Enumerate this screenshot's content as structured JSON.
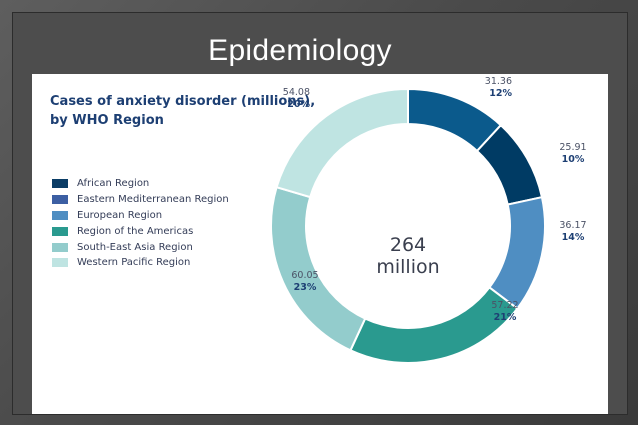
{
  "slide": {
    "title": "Epidemiology"
  },
  "chart_data": {
    "type": "pie",
    "title_lines": [
      "Cases of anxiety disorder (millions),",
      "by WHO Region"
    ],
    "center_label": [
      "264",
      "million"
    ],
    "legend_placement": "left",
    "slices": [
      {
        "name": "African Region",
        "value": 31.36,
        "percent": "12%",
        "color": "#0b5a8c"
      },
      {
        "name": "Eastern Mediterranean Region",
        "value": 25.91,
        "percent": "10%",
        "color": "#003b64"
      },
      {
        "name": "European Region",
        "value": 36.17,
        "percent": "14%",
        "color": "#4f8ec2"
      },
      {
        "name": "Region of the Americas",
        "value": 57.22,
        "percent": "21%",
        "color": "#2a9a8f"
      },
      {
        "name": "South-East Asia Region",
        "value": 60.05,
        "percent": "23%",
        "color": "#93cccc"
      },
      {
        "name": "Western Pacific Region",
        "value": 54.08,
        "percent": "20%",
        "color": "#bfe4e2"
      }
    ],
    "legend": [
      {
        "name": "African Region",
        "color": "#0b3d66"
      },
      {
        "name": "Eastern Mediterranean Region",
        "color": "#3c5fa3"
      },
      {
        "name": "European Region",
        "color": "#4f8ec2"
      },
      {
        "name": "Region of the Americas",
        "color": "#2a9a8f"
      },
      {
        "name": "South-East Asia Region",
        "color": "#93cccc"
      },
      {
        "name": "Western Pacific Region",
        "color": "#bfe4e2"
      }
    ],
    "value_labels": [
      "31.36",
      "25.91",
      "36.17",
      "57.22",
      "60.05",
      "54.08"
    ]
  }
}
